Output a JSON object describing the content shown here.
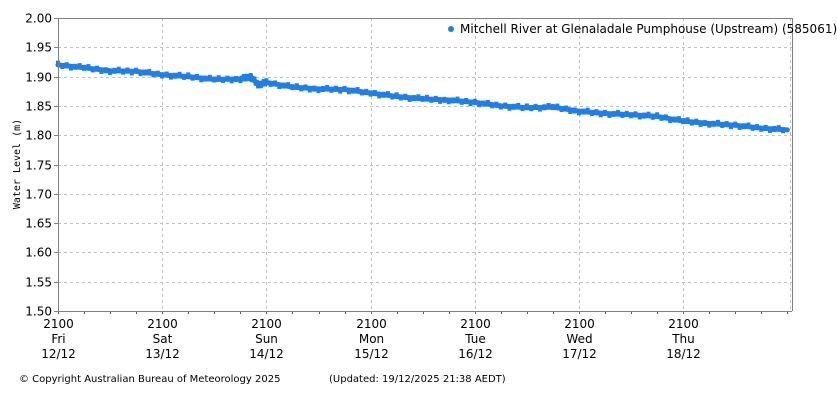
{
  "chart_data": {
    "type": "scatter",
    "title": "",
    "xlabel": "",
    "ylabel": "Water Level (m)",
    "ylim": [
      1.5,
      2.0
    ],
    "yticks": [
      "1.50",
      "1.55",
      "1.60",
      "1.65",
      "1.70",
      "1.75",
      "1.80",
      "1.85",
      "1.90",
      "1.95",
      "2.00"
    ],
    "xticks": [
      {
        "time": "2100",
        "day": "Fri",
        "date": "12/12"
      },
      {
        "time": "2100",
        "day": "Sat",
        "date": "13/12"
      },
      {
        "time": "2100",
        "day": "Sun",
        "date": "14/12"
      },
      {
        "time": "2100",
        "day": "Mon",
        "date": "15/12"
      },
      {
        "time": "2100",
        "day": "Tue",
        "date": "16/12"
      },
      {
        "time": "2100",
        "day": "Wed",
        "date": "17/12"
      },
      {
        "time": "2100",
        "day": "Thu",
        "date": "18/12"
      }
    ],
    "grid": true,
    "legend_position": "top-right",
    "series": [
      {
        "name": "Mitchell River at Glenaladale Pumphouse (Upstream) (585061)",
        "color": "#1f7fe6",
        "x_days_from_start": [
          0.0,
          0.25,
          0.5,
          0.75,
          1.0,
          1.25,
          1.5,
          1.75,
          1.85,
          1.92,
          2.0,
          2.25,
          2.5,
          2.75,
          3.0,
          3.25,
          3.5,
          3.75,
          4.0,
          4.25,
          4.5,
          4.75,
          5.0,
          5.25,
          5.5,
          5.75,
          6.0,
          6.25,
          6.5,
          6.75,
          7.0
        ],
        "values": [
          1.92,
          1.915,
          1.91,
          1.909,
          1.903,
          1.9,
          1.895,
          1.896,
          1.9,
          1.886,
          1.89,
          1.882,
          1.879,
          1.878,
          1.872,
          1.866,
          1.862,
          1.86,
          1.856,
          1.85,
          1.847,
          1.848,
          1.841,
          1.837,
          1.835,
          1.832,
          1.824,
          1.82,
          1.817,
          1.812,
          1.809
        ]
      }
    ]
  },
  "legend": {
    "label": "Mitchell River at Glenaladale Pumphouse (Upstream) (585061)"
  },
  "footer": {
    "copyright": "© Copyright Australian Bureau of Meteorology 2025",
    "updated": "(Updated: 19/12/2025 21:38 AEDT)"
  }
}
